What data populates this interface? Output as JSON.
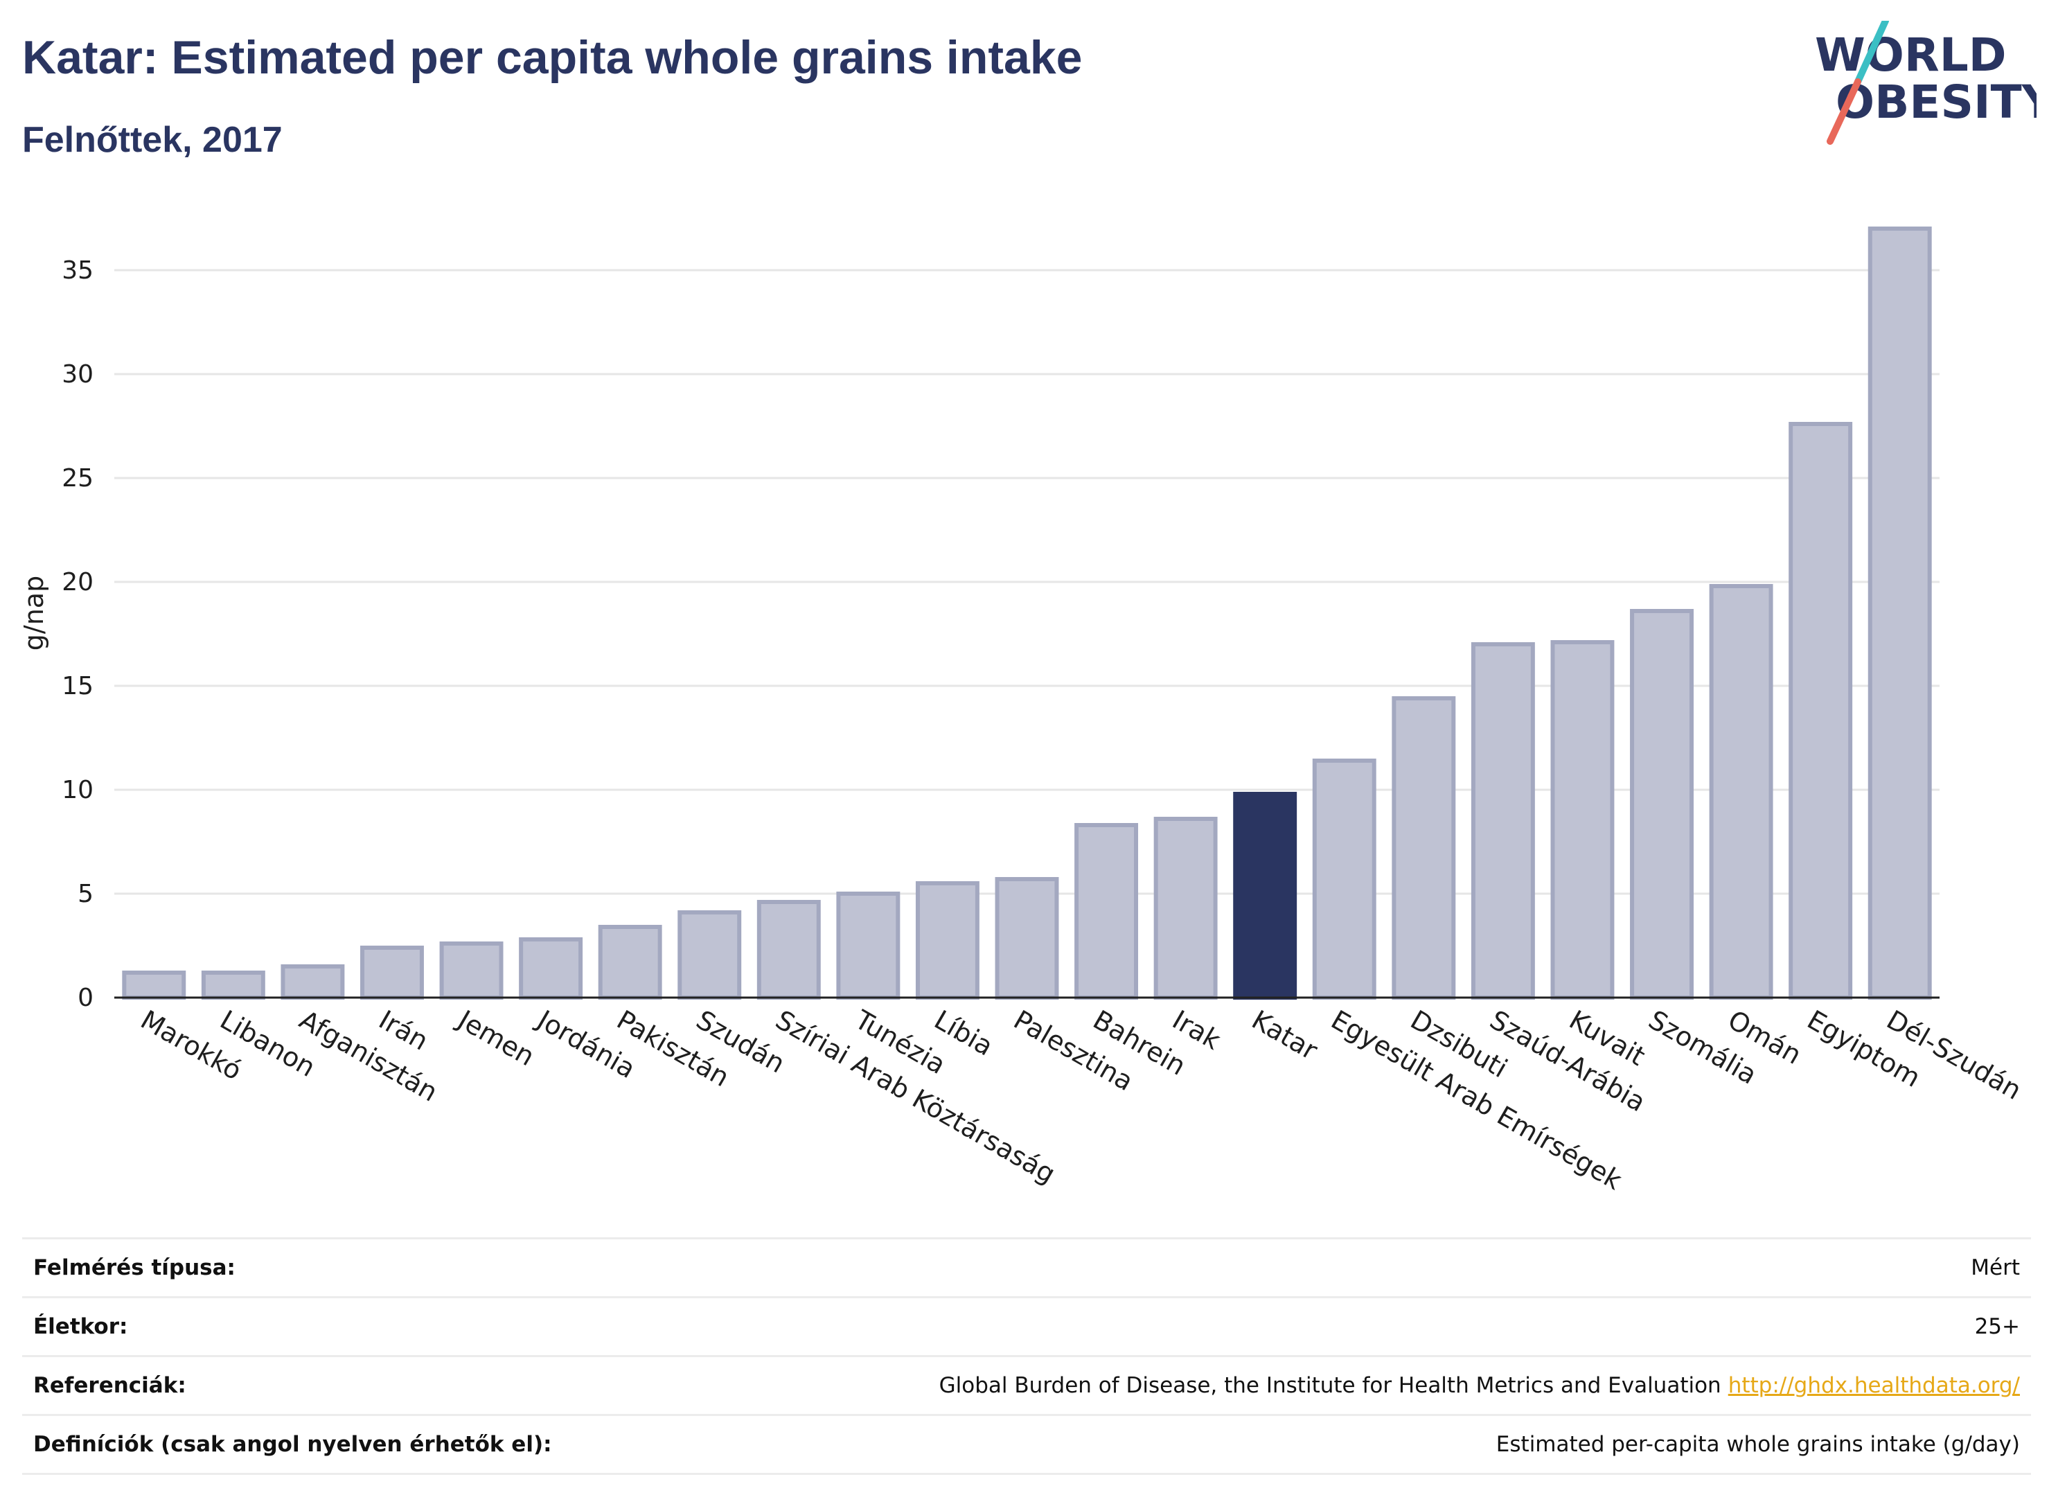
{
  "header": {
    "title": "Katar: Estimated per capita whole grains intake",
    "subtitle": "Felnőttek, 2017"
  },
  "logo": {
    "line1": "WORLD",
    "line2": "OBESITY",
    "accent_teal": "#3bbfc4",
    "accent_red": "#e8685a",
    "text_color": "#2a3561"
  },
  "colors": {
    "bar": "#bfc2d3",
    "bar_border": "#a3a8c0",
    "highlight": "#2a3561",
    "grid": "#e6e6e6"
  },
  "chart_data": {
    "type": "bar",
    "ylabel": "g/nap",
    "ylim": [
      0,
      37
    ],
    "yticks": [
      0,
      5,
      10,
      15,
      20,
      25,
      30,
      35
    ],
    "grid": true,
    "highlight": "Katar",
    "categories": [
      "Marokkó",
      "Libanon",
      "Afganisztán",
      "Irán",
      "Jemen",
      "Jordánia",
      "Pakisztán",
      "Szudán",
      "Szíriai Arab Köztársaság",
      "Tunézia",
      "Líbia",
      "Palesztina",
      "Bahrein",
      "Irak",
      "Katar",
      "Egyesült Arab Emírségek",
      "Dzsibuti",
      "Szaúd-Arábia",
      "Kuvait",
      "Szomália",
      "Omán",
      "Egyiptom",
      "Dél-Szudán"
    ],
    "values": [
      1.2,
      1.2,
      1.5,
      2.4,
      2.6,
      2.8,
      3.4,
      4.1,
      4.6,
      5.0,
      5.5,
      5.7,
      8.3,
      8.6,
      9.8,
      11.4,
      14.4,
      17.0,
      17.1,
      18.6,
      19.8,
      27.6,
      37.0
    ]
  },
  "info": [
    {
      "label": "Felmérés típusa:",
      "value": "Mért"
    },
    {
      "label": "Életkor:",
      "value": "25+"
    },
    {
      "label": "Referenciák:",
      "value": "Global Burden of Disease, the Institute for Health Metrics and Evaluation",
      "link": "http://ghdx.healthdata.org/"
    },
    {
      "label": "Definíciók (csak angol nyelven érhetők el):",
      "value": "Estimated per-capita whole grains intake (g/day)"
    }
  ]
}
